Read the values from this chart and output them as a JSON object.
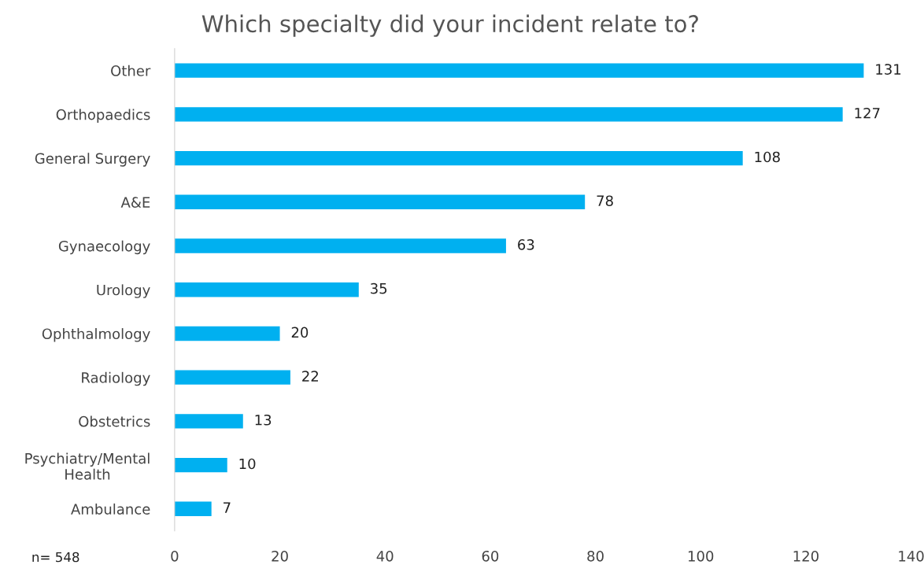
{
  "chart_data": {
    "type": "bar",
    "orientation": "horizontal",
    "title": "Which specialty did your incident relate to?",
    "categories": [
      "Other",
      "Orthopaedics",
      "General Surgery",
      "A&E",
      "Gynaecology",
      "Urology",
      "Ophthalmology",
      "Radiology",
      "Obstetrics",
      "Psychiatry/Mental\nHealth",
      "Ambulance"
    ],
    "values": [
      131,
      127,
      108,
      78,
      63,
      35,
      20,
      22,
      13,
      10,
      7
    ],
    "color": "#00b0f0",
    "data_labels": true,
    "grid": false,
    "legend": false,
    "xlim": [
      0,
      140
    ],
    "xticks": [
      0,
      20,
      40,
      60,
      80,
      100,
      120,
      140
    ],
    "annotations": [
      "n= 548"
    ]
  }
}
